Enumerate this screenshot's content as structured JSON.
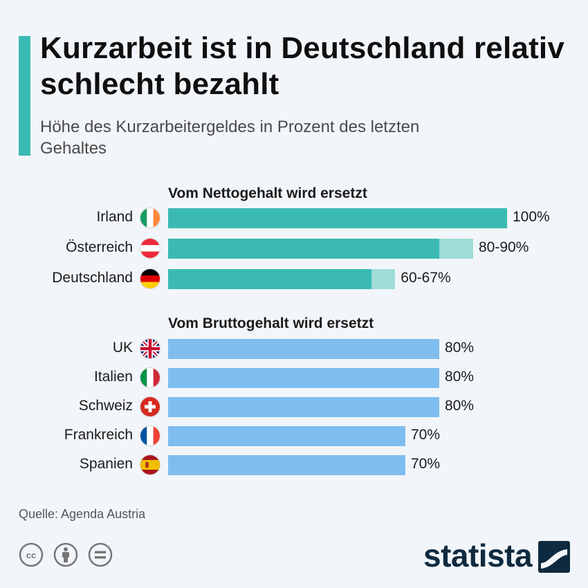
{
  "title": "Kurzarbeit ist in Deutschland relativ schlecht bezahlt",
  "subtitle": "Höhe des Kurzarbeitergeldes in Prozent des letzten Gehaltes",
  "source": "Quelle: Agenda Austria",
  "brand": "statista",
  "colors": {
    "accent": "#3bbab4",
    "netto_bar": "#3bbab4",
    "netto_range": "#9fdcd8",
    "brutto_bar": "#7fbdee"
  },
  "chart_data": {
    "type": "bar",
    "orientation": "horizontal",
    "xlim": [
      0,
      100
    ],
    "groups": [
      {
        "label": "Vom Nettogehalt wird ersetzt",
        "rows": [
          {
            "country": "Irland",
            "flag": "ireland-flag",
            "low": 100,
            "high": 100,
            "value_label": "100%"
          },
          {
            "country": "Österreich",
            "flag": "austria-flag",
            "low": 80,
            "high": 90,
            "value_label": "80-90%"
          },
          {
            "country": "Deutschland",
            "flag": "germany-flag",
            "low": 60,
            "high": 67,
            "value_label": "60-67%"
          }
        ]
      },
      {
        "label": "Vom Bruttogehalt wird ersetzt",
        "rows": [
          {
            "country": "UK",
            "flag": "uk-flag",
            "low": 80,
            "high": 80,
            "value_label": "80%"
          },
          {
            "country": "Italien",
            "flag": "italy-flag",
            "low": 80,
            "high": 80,
            "value_label": "80%"
          },
          {
            "country": "Schweiz",
            "flag": "switzerland-flag",
            "low": 80,
            "high": 80,
            "value_label": "80%"
          },
          {
            "country": "Frankreich",
            "flag": "france-flag",
            "low": 70,
            "high": 70,
            "value_label": "70%"
          },
          {
            "country": "Spanien",
            "flag": "spain-flag",
            "low": 70,
            "high": 70,
            "value_label": "70%"
          }
        ]
      }
    ]
  }
}
